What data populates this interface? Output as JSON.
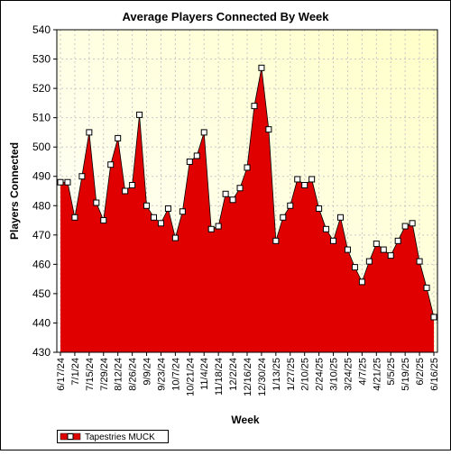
{
  "chart_data": {
    "type": "area",
    "title": "Average Players Connected By Week",
    "xlabel": "Week",
    "ylabel": "Players Connected",
    "ylim": [
      430,
      540
    ],
    "yticks": [
      430,
      440,
      450,
      460,
      470,
      480,
      490,
      500,
      510,
      520,
      530,
      540
    ],
    "x_tick_labels": [
      "6/17/24",
      "7/1/24",
      "7/15/24",
      "7/29/24",
      "8/12/24",
      "8/26/24",
      "9/9/24",
      "9/23/24",
      "10/7/24",
      "10/21/24",
      "11/4/24",
      "11/18/24",
      "12/2/24",
      "12/16/24",
      "12/30/24",
      "1/13/25",
      "1/27/25",
      "2/10/25",
      "2/24/25",
      "3/10/25",
      "3/24/25",
      "4/7/25",
      "4/21/25",
      "5/5/25",
      "5/19/25",
      "6/2/25",
      "6/16/25"
    ],
    "grid": true,
    "legend_position": "bottom-left",
    "series": [
      {
        "name": "Tapestries MUCK",
        "color": "#e00000",
        "x": [
          "6/17/24",
          "6/24/24",
          "7/1/24",
          "7/8/24",
          "7/15/24",
          "7/22/24",
          "7/29/24",
          "8/5/24",
          "8/12/24",
          "8/19/24",
          "8/26/24",
          "9/2/24",
          "9/9/24",
          "9/16/24",
          "9/23/24",
          "9/30/24",
          "10/7/24",
          "10/14/24",
          "10/21/24",
          "10/28/24",
          "11/4/24",
          "11/11/24",
          "11/18/24",
          "11/25/24",
          "12/2/24",
          "12/9/24",
          "12/16/24",
          "12/23/24",
          "12/30/24",
          "1/6/25",
          "1/13/25",
          "1/20/25",
          "1/27/25",
          "2/3/25",
          "2/10/25",
          "2/17/25",
          "2/24/25",
          "3/3/25",
          "3/10/25",
          "3/17/25",
          "3/24/25",
          "3/31/25",
          "4/7/25",
          "4/14/25",
          "4/21/25",
          "4/28/25",
          "5/5/25",
          "5/12/25",
          "5/19/25",
          "5/26/25",
          "6/2/25",
          "6/9/25",
          "6/16/25"
        ],
        "values": [
          488,
          488,
          476,
          490,
          505,
          481,
          475,
          494,
          503,
          485,
          487,
          511,
          480,
          476,
          474,
          479,
          469,
          478,
          495,
          497,
          505,
          472,
          473,
          484,
          482,
          486,
          493,
          514,
          527,
          506,
          468,
          476,
          480,
          489,
          487,
          489,
          479,
          472,
          468,
          476,
          465,
          459,
          454,
          461,
          467,
          465,
          463,
          468,
          473,
          474,
          461,
          452,
          442
        ]
      }
    ]
  }
}
